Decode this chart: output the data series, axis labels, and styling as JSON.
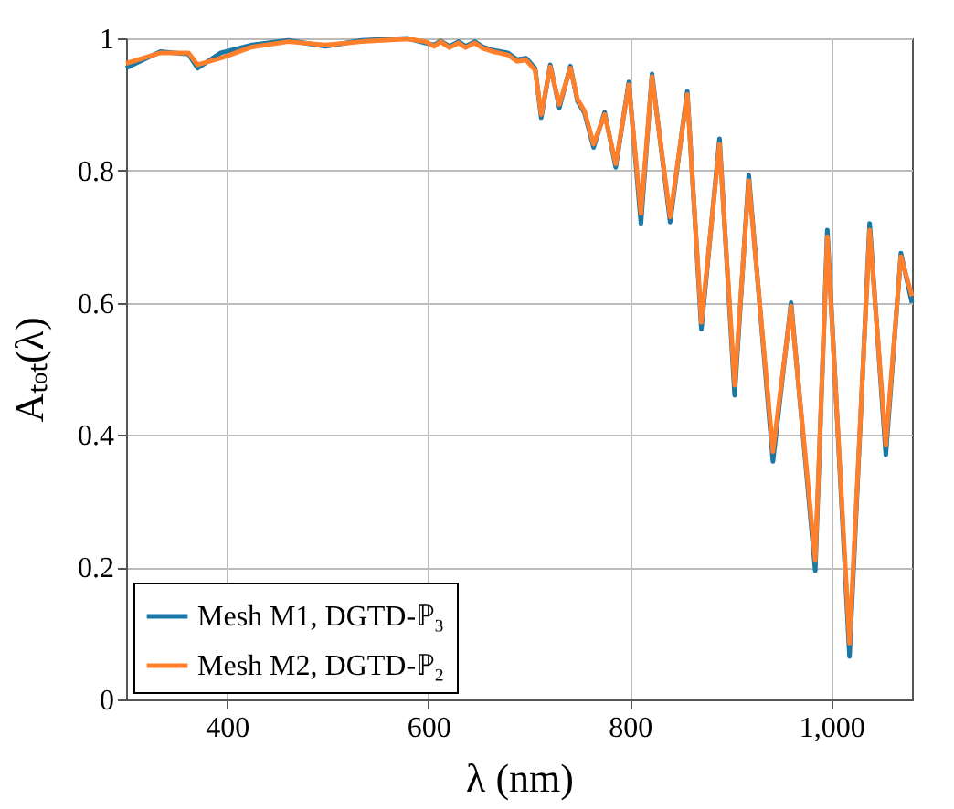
{
  "chart_data": {
    "type": "line",
    "xlabel": "λ (nm)",
    "ylabel": "Aₜₒₜ(λ)",
    "x": [
      300,
      334,
      362,
      371,
      394,
      425,
      461,
      498,
      534,
      579,
      597,
      606,
      612,
      621,
      630,
      637,
      646,
      654,
      664,
      679,
      688,
      697,
      706,
      712,
      721,
      730,
      741,
      748,
      755,
      764,
      775,
      786,
      799,
      811,
      822,
      840,
      857,
      871,
      889,
      904,
      918,
      942,
      960,
      984,
      996,
      1018,
      1038,
      1054,
      1069,
      1080
    ],
    "series": [
      {
        "name": "Mesh M1, DGTD-ℙ₃",
        "color": "#1a77a6",
        "values": [
          0.955,
          0.98,
          0.976,
          0.955,
          0.978,
          0.99,
          0.997,
          0.988,
          0.997,
          1.0,
          0.993,
          0.99,
          0.996,
          0.988,
          0.995,
          0.988,
          0.995,
          0.987,
          0.982,
          0.978,
          0.968,
          0.97,
          0.955,
          0.88,
          0.96,
          0.895,
          0.958,
          0.905,
          0.887,
          0.835,
          0.888,
          0.805,
          0.934,
          0.72,
          0.946,
          0.722,
          0.92,
          0.56,
          0.848,
          0.46,
          0.793,
          0.36,
          0.6,
          0.195,
          0.71,
          0.065,
          0.72,
          0.37,
          0.675,
          0.6
        ]
      },
      {
        "name": "Mesh M2, DGTD-ℙ₂",
        "color": "#ff7f2a",
        "values": [
          0.962,
          0.978,
          0.978,
          0.96,
          0.97,
          0.987,
          0.995,
          0.99,
          0.995,
          0.999,
          0.995,
          0.988,
          0.995,
          0.986,
          0.993,
          0.986,
          0.993,
          0.985,
          0.98,
          0.975,
          0.965,
          0.967,
          0.952,
          0.885,
          0.957,
          0.9,
          0.955,
          0.908,
          0.89,
          0.84,
          0.885,
          0.81,
          0.93,
          0.735,
          0.942,
          0.73,
          0.915,
          0.57,
          0.84,
          0.475,
          0.785,
          0.375,
          0.595,
          0.21,
          0.7,
          0.085,
          0.71,
          0.385,
          0.67,
          0.61
        ]
      }
    ],
    "xlim": [
      300,
      1080
    ],
    "xticks": [
      400,
      600,
      800,
      {
        "value": 1000,
        "label": "1,000"
      }
    ],
    "ylim": [
      0,
      1
    ],
    "yticks": [
      0,
      0.2,
      0.4,
      0.6,
      0.8,
      1
    ],
    "grid": true,
    "legend": "bottom left",
    "marker": "none",
    "line_style": "solid"
  }
}
